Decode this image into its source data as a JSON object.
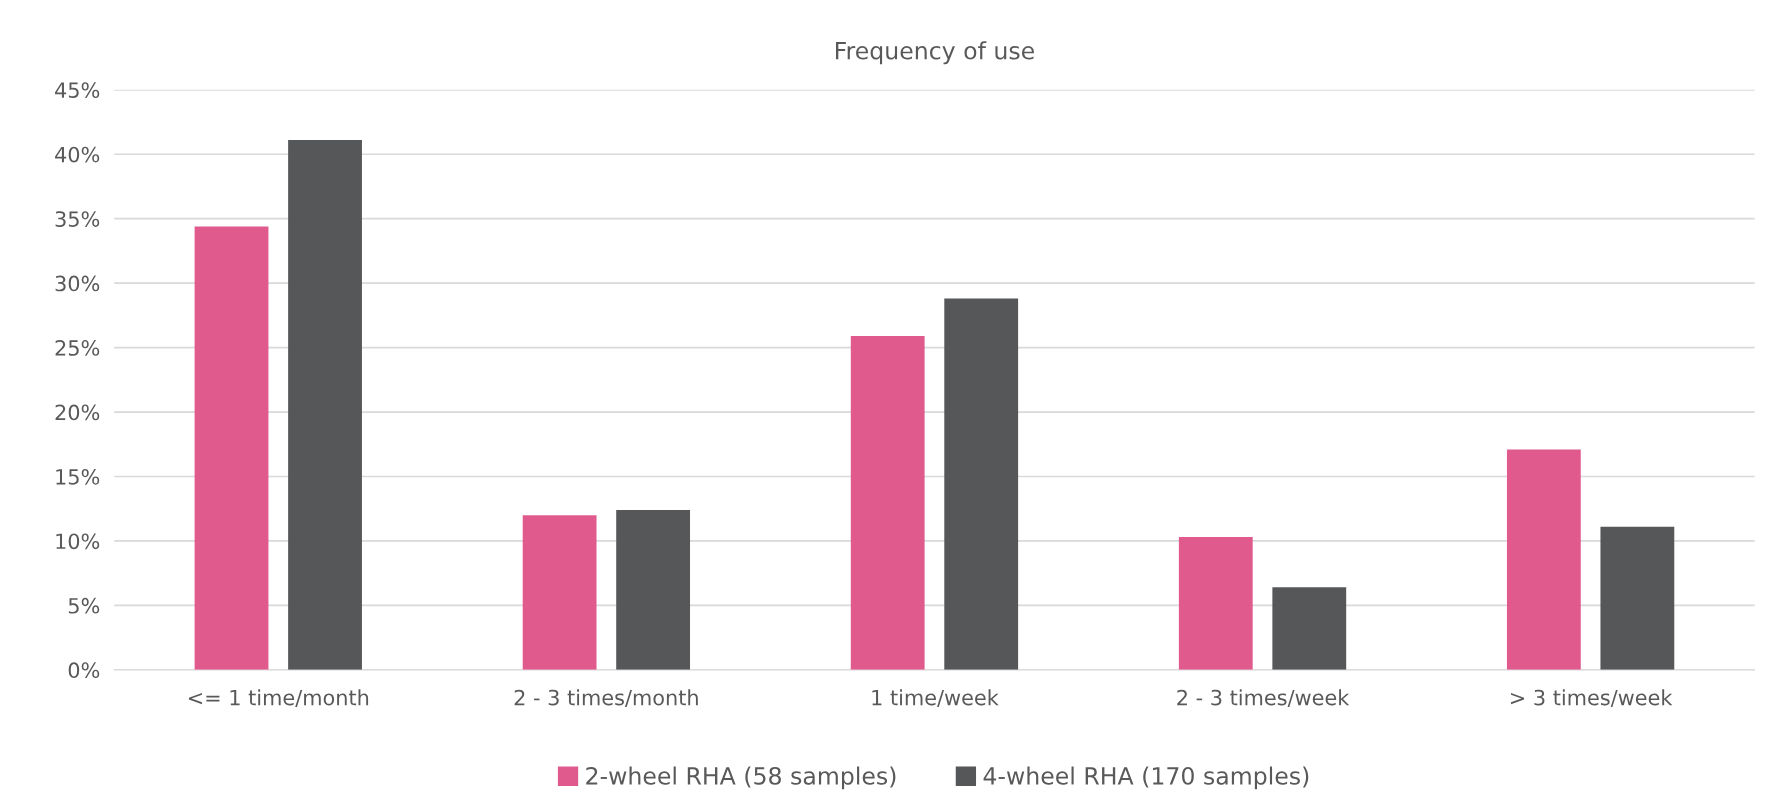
{
  "chart_data": {
    "type": "bar",
    "title": "Frequency of use",
    "categories": [
      "<= 1 time/month",
      "2 - 3 times/month",
      "1 time/week",
      "2 - 3 times/week",
      "> 3 times/week"
    ],
    "series": [
      {
        "name": "2-wheel RHA (58 samples)",
        "color": "#e05a8e",
        "values": [
          34.4,
          12.0,
          25.9,
          10.3,
          17.1
        ]
      },
      {
        "name": "4-wheel RHA (170 samples)",
        "color": "#555759",
        "values": [
          41.1,
          12.4,
          28.8,
          6.4,
          11.1
        ]
      }
    ],
    "ylim": [
      0,
      45
    ],
    "yticks": [
      {
        "value": 0,
        "label": "0%"
      },
      {
        "value": 5,
        "label": "5%"
      },
      {
        "value": 10,
        "label": "10%"
      },
      {
        "value": 15,
        "label": "15%"
      },
      {
        "value": 20,
        "label": "20%"
      },
      {
        "value": 25,
        "label": "25%"
      },
      {
        "value": 30,
        "label": "30%"
      },
      {
        "value": 35,
        "label": "35%"
      },
      {
        "value": 40,
        "label": "40%"
      },
      {
        "value": 45,
        "label": "45%"
      }
    ],
    "grid": "y",
    "legend": "bottom"
  }
}
